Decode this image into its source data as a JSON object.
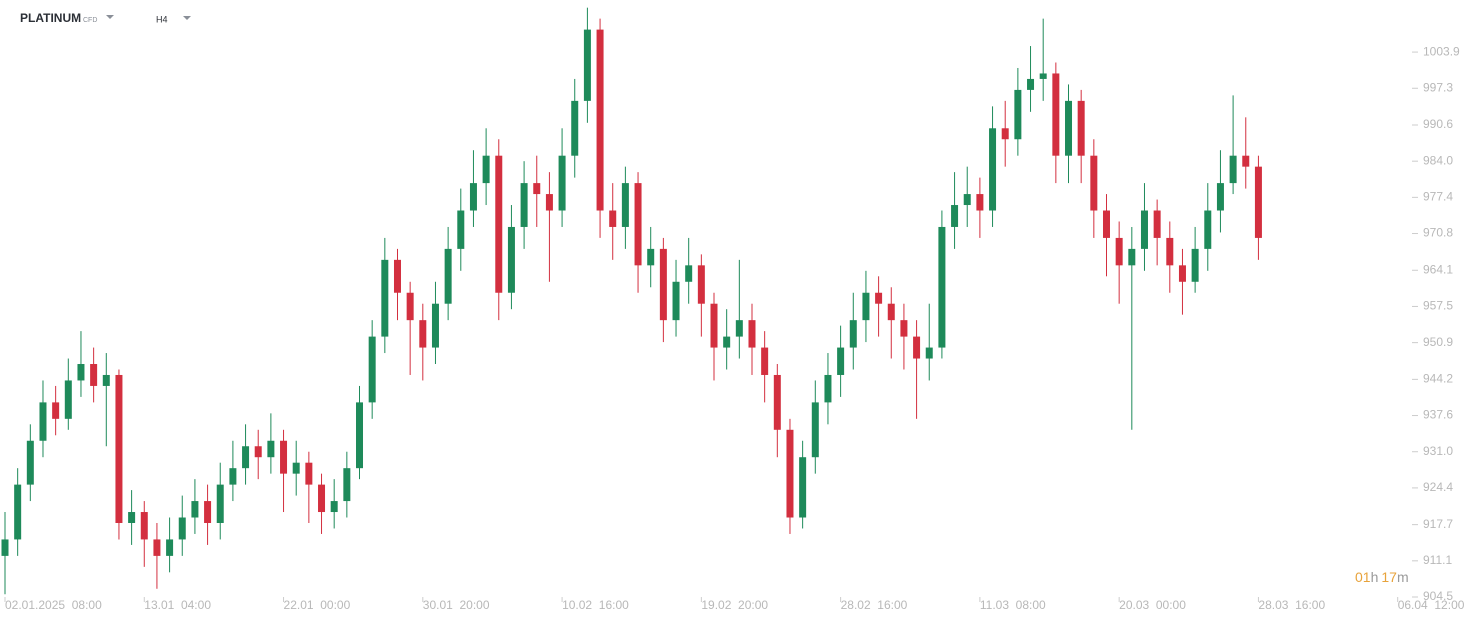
{
  "chart_data": {
    "type": "candlestick",
    "title": "PLATINUM",
    "instrument_kind": "CFD",
    "timeframe": "H4",
    "countdown": [
      "01",
      "h",
      "17",
      "m"
    ],
    "up_color": "#1e8a5a",
    "down_color": "#d32f3f",
    "countdown_color": "#e8a33b",
    "ylim": [
      904.5,
      1013.4
    ],
    "yticks": [
      904.5,
      911.1,
      917.7,
      924.4,
      {
        "value": 931,
        "label": "931.0"
      },
      937.6,
      944.2,
      950.9,
      957.5,
      964.1,
      970.8,
      977.4,
      {
        "value": 984,
        "label": "984.0"
      },
      990.6,
      997.3,
      1003.9
    ],
    "xlim": [
      0,
      115
    ],
    "xticks": [
      {
        "value": 0,
        "label": "02.01.2025  08:00"
      },
      {
        "value": 11,
        "label": "13.01  04:00"
      },
      {
        "value": 22,
        "label": "22.01  00:00"
      },
      {
        "value": 33,
        "label": "30.01  20:00"
      },
      {
        "value": 44,
        "label": "10.02  16:00"
      },
      {
        "value": 55,
        "label": "19.02  20:00"
      },
      {
        "value": 66,
        "label": "28.02  16:00"
      },
      {
        "value": 77,
        "label": "11.03  08:00"
      },
      {
        "value": 88,
        "label": "20.03  00:00"
      },
      {
        "value": 99,
        "label": "28.03  16:00"
      },
      {
        "value": 110,
        "label": "06.04  12:00"
      }
    ],
    "open": [
      912,
      915,
      925,
      933,
      940,
      937,
      944,
      947,
      943,
      945,
      918,
      920,
      915,
      912,
      915,
      919,
      922,
      918,
      925,
      928,
      932,
      930,
      933,
      927,
      929,
      925,
      920,
      922,
      928,
      940,
      952,
      966,
      960,
      955,
      950,
      958,
      968,
      975,
      980,
      985,
      960,
      972,
      980,
      978,
      975,
      985,
      995,
      1008,
      975,
      972,
      980,
      965,
      968,
      955,
      962,
      965,
      958,
      950,
      952,
      955,
      950,
      945,
      935,
      919,
      930,
      940,
      945,
      950,
      955,
      960,
      958,
      955,
      952,
      948,
      950,
      972,
      976,
      978,
      975,
      990,
      988,
      997,
      999,
      1000,
      985,
      995,
      985,
      975,
      970,
      965,
      968,
      975,
      970,
      965,
      962,
      968,
      975,
      980,
      985,
      983
    ],
    "high": [
      920,
      928,
      936,
      944,
      943,
      948,
      953,
      950,
      949,
      946,
      924,
      922,
      918,
      919,
      923,
      926,
      925,
      929,
      933,
      936,
      935,
      938,
      935,
      933,
      931,
      927,
      926,
      931,
      943,
      955,
      970,
      968,
      962,
      958,
      962,
      972,
      979,
      986,
      990,
      988,
      976,
      984,
      985,
      982,
      990,
      999,
      1012,
      1010,
      980,
      983,
      982,
      972,
      970,
      966,
      970,
      967,
      960,
      957,
      966,
      958,
      953,
      947,
      937,
      933,
      944,
      949,
      954,
      960,
      964,
      963,
      961,
      958,
      955,
      958,
      975,
      982,
      983,
      981,
      994,
      995,
      1001,
      1005,
      1010,
      1002,
      998,
      997,
      988,
      978,
      973,
      972,
      980,
      977,
      973,
      968,
      972,
      980,
      986,
      996,
      992,
      985
    ],
    "low": [
      905,
      912,
      922,
      930,
      934,
      935,
      941,
      940,
      932,
      915,
      914,
      910,
      906,
      909,
      912,
      916,
      914,
      915,
      922,
      925,
      926,
      927,
      920,
      923,
      918,
      916,
      917,
      919,
      926,
      937,
      949,
      955,
      945,
      944,
      947,
      955,
      964,
      972,
      976,
      955,
      957,
      968,
      972,
      962,
      972,
      981,
      991,
      970,
      966,
      968,
      960,
      961,
      951,
      952,
      958,
      952,
      944,
      946,
      948,
      945,
      940,
      930,
      916,
      917,
      927,
      936,
      941,
      946,
      951,
      952,
      948,
      946,
      937,
      944,
      948,
      968,
      972,
      970,
      972,
      983,
      985,
      993,
      995,
      980,
      980,
      980,
      970,
      963,
      958,
      935,
      964,
      965,
      960,
      956,
      960,
      964,
      971,
      978,
      979,
      966
    ],
    "close": [
      915,
      925,
      933,
      940,
      937,
      944,
      947,
      943,
      945,
      918,
      920,
      915,
      912,
      915,
      919,
      922,
      918,
      925,
      928,
      932,
      930,
      933,
      927,
      929,
      925,
      920,
      922,
      928,
      940,
      952,
      966,
      960,
      955,
      950,
      958,
      968,
      975,
      980,
      985,
      960,
      972,
      980,
      978,
      975,
      985,
      995,
      1008,
      975,
      972,
      980,
      965,
      968,
      955,
      962,
      965,
      958,
      950,
      952,
      955,
      950,
      945,
      935,
      919,
      930,
      940,
      945,
      950,
      955,
      960,
      958,
      955,
      952,
      948,
      950,
      972,
      976,
      978,
      975,
      990,
      988,
      997,
      999,
      1000,
      985,
      995,
      985,
      975,
      970,
      965,
      968,
      975,
      970,
      965,
      962,
      968,
      975,
      980,
      985,
      983,
      970
    ]
  }
}
